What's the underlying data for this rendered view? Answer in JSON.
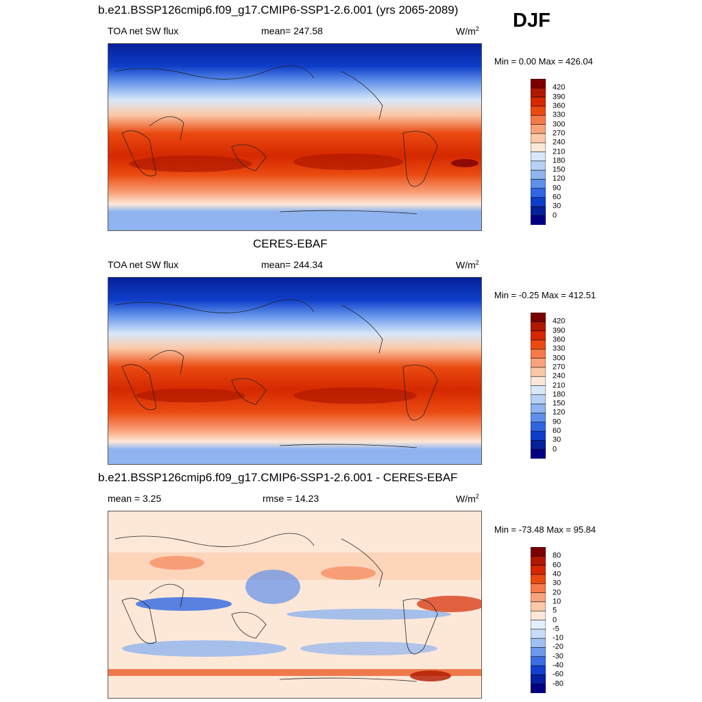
{
  "season": "DJF",
  "panels": [
    {
      "title": "b.e21.BSSP126cmip6.f09_g17.CMIP6-SSP1-2.6.001 (yrs 2065-2089)",
      "left_label": "TOA net SW flux",
      "center_label": "mean= 247.58",
      "units_base": "W/m",
      "units_exp": "2",
      "minmax": "Min =   0.00 Max = 426.04",
      "colorbar": {
        "labels": [
          "420",
          "390",
          "360",
          "330",
          "300",
          "270",
          "240",
          "210",
          "180",
          "150",
          "120",
          "90",
          "60",
          "30",
          "0"
        ],
        "colors": [
          "#7a0000",
          "#b01800",
          "#d52800",
          "#ea4a10",
          "#f57a4a",
          "#f9a27c",
          "#fbc8a8",
          "#fde8d8",
          "#d8e8fa",
          "#b8d2f5",
          "#8fb4ef",
          "#5f90ea",
          "#2f66e2",
          "#0e3ec9",
          "#06209a",
          "#000080"
        ]
      }
    },
    {
      "title": "CERES-EBAF",
      "left_label": "TOA net SW flux",
      "center_label": "mean= 244.34",
      "units_base": "W/m",
      "units_exp": "2",
      "minmax": "Min =  -0.25 Max = 412.51",
      "colorbar": {
        "labels": [
          "420",
          "390",
          "360",
          "330",
          "300",
          "270",
          "240",
          "210",
          "180",
          "150",
          "120",
          "90",
          "60",
          "30",
          "0"
        ],
        "colors": [
          "#7a0000",
          "#b01800",
          "#d52800",
          "#ea4a10",
          "#f57a4a",
          "#f9a27c",
          "#fbc8a8",
          "#fde8d8",
          "#d8e8fa",
          "#b8d2f5",
          "#8fb4ef",
          "#5f90ea",
          "#2f66e2",
          "#0e3ec9",
          "#06209a",
          "#000080"
        ]
      }
    },
    {
      "title": "b.e21.BSSP126cmip6.f09_g17.CMIP6-SSP1-2.6.001 - CERES-EBAF",
      "left_label": "mean =   3.25",
      "center_label": "rmse =  14.23",
      "units_base": "W/m",
      "units_exp": "2",
      "minmax": "Min = -73.48 Max =  95.84",
      "colorbar": {
        "labels": [
          "80",
          "60",
          "40",
          "30",
          "20",
          "10",
          "5",
          "0",
          "-5",
          "-10",
          "-20",
          "-30",
          "-40",
          "-60",
          "-80"
        ],
        "colors": [
          "#7a0000",
          "#b01800",
          "#d52800",
          "#ea4a10",
          "#f57a4a",
          "#f9a27c",
          "#fbc8a8",
          "#fde8d8",
          "#e6f0fc",
          "#c8dcf7",
          "#9fc0f1",
          "#6e9aeb",
          "#3a6ee3",
          "#1040d0",
          "#0620a0",
          "#000080"
        ]
      }
    }
  ]
}
